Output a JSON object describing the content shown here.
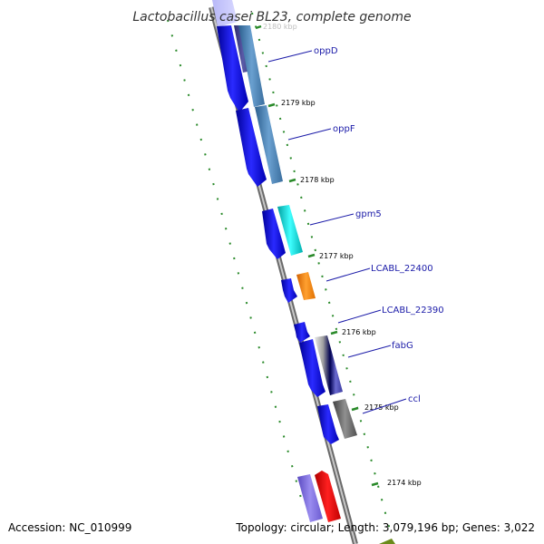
{
  "title": "Lactobacillus casei BL23, complete genome",
  "accession": "Accession: NC_010999",
  "topology": "Topology: circular; Length: 3,079,196 bp; Genes: 3,022",
  "colors": {
    "cds": "#1010e0",
    "backbone": "#8a8a8a",
    "gc_dots": "#2a8a2a",
    "label_text": "#1a1aa8"
  },
  "ruler": [
    {
      "label": "2180 kbp",
      "faded": true
    },
    {
      "label": "2179 kbp"
    },
    {
      "label": "2178 kbp"
    },
    {
      "label": "2177 kbp"
    },
    {
      "label": "2176 kbp"
    },
    {
      "label": "2175 kbp"
    },
    {
      "label": "2174 kbp"
    }
  ],
  "genes": [
    {
      "name": "oppD"
    },
    {
      "name": "oppF"
    },
    {
      "name": "gpm5"
    },
    {
      "name": "LCABL_22400"
    },
    {
      "name": "LCABL_22390"
    },
    {
      "name": "fabG"
    },
    {
      "name": "ccl"
    }
  ]
}
